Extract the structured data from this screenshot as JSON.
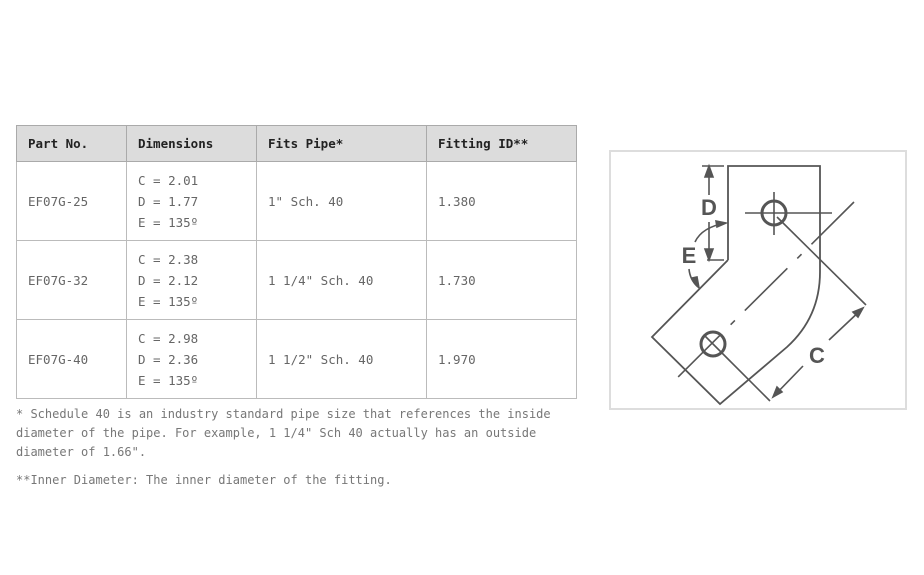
{
  "table": {
    "headers": [
      "Part No.",
      "Dimensions",
      "Fits Pipe*",
      "Fitting ID**"
    ],
    "rows": [
      {
        "part": "EF07G-25",
        "dims": [
          "C = 2.01",
          "D = 1.77",
          "E = 135º"
        ],
        "pipe": "1\" Sch. 40",
        "id": "1.380"
      },
      {
        "part": "EF07G-32",
        "dims": [
          "C = 2.38",
          "D = 2.12",
          "E = 135º"
        ],
        "pipe": "1 1/4\" Sch. 40",
        "id": "1.730"
      },
      {
        "part": "EF07G-40",
        "dims": [
          "C = 2.98",
          "D = 2.36",
          "E = 135º"
        ],
        "pipe": "1 1/2\" Sch. 40",
        "id": "1.970"
      }
    ]
  },
  "notes": [
    "* Schedule 40 is an industry standard pipe size that references the inside diameter of the pipe. For example, 1 1/4\" Sch 40 actually has an outside diameter of 1.66\".",
    "**Inner Diameter: The inner diameter of the fitting."
  ],
  "diagram": {
    "labels": {
      "c": "C",
      "d": "D",
      "e": "E"
    }
  }
}
